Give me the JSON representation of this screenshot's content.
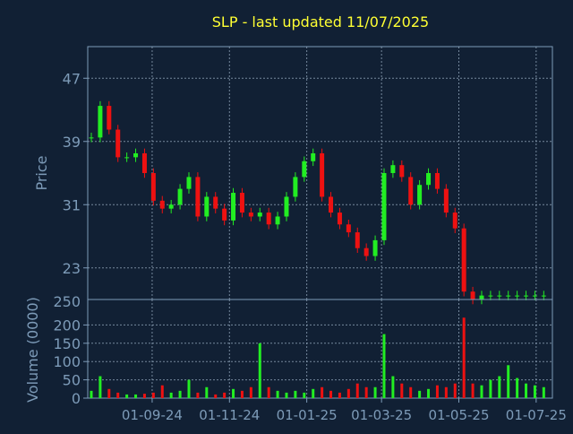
{
  "chart_data": {
    "type": "candlestick",
    "title": "SLP - last updated 11/07/2025",
    "colors": {
      "background": "#112034",
      "axis": "#7d9bb8",
      "grid": "#8fa3b8",
      "title": "#ffff33",
      "up": "#22ee22",
      "down": "#ee1111"
    },
    "price_panel": {
      "ylabel": "Price",
      "ylim": [
        19,
        51
      ],
      "yticks": [
        47,
        39,
        31,
        23
      ],
      "bottom_tick_label": "250"
    },
    "volume_panel": {
      "ylabel": "Volume (0000)",
      "ylim": [
        0,
        250
      ],
      "yticks": [
        0,
        50,
        100,
        150,
        200
      ]
    },
    "x_axis": {
      "first_date": "2024-07-15",
      "last_date": "2025-07-11",
      "tick_dates": [
        "2024-09-01",
        "2024-11-01",
        "2025-01-01",
        "2025-03-01",
        "2025-05-01",
        "2025-07-01"
      ],
      "tick_labels": [
        "01-09-24",
        "01-11-24",
        "01-01-25",
        "01-03-25",
        "01-05-25",
        "01-07-25"
      ],
      "grid": true
    },
    "price_series": {
      "name": "SLP",
      "dates": [
        "2024-07-15",
        "2024-07-22",
        "2024-07-29",
        "2024-08-05",
        "2024-08-12",
        "2024-08-19",
        "2024-08-26",
        "2024-09-02",
        "2024-09-09",
        "2024-09-16",
        "2024-09-23",
        "2024-09-30",
        "2024-10-07",
        "2024-10-14",
        "2024-10-21",
        "2024-10-28",
        "2024-11-04",
        "2024-11-11",
        "2024-11-18",
        "2024-11-25",
        "2024-12-02",
        "2024-12-09",
        "2024-12-16",
        "2024-12-23",
        "2024-12-30",
        "2025-01-06",
        "2025-01-13",
        "2025-01-20",
        "2025-01-27",
        "2025-02-03",
        "2025-02-10",
        "2025-02-17",
        "2025-02-24",
        "2025-03-03",
        "2025-03-10",
        "2025-03-17",
        "2025-03-24",
        "2025-03-31",
        "2025-04-07",
        "2025-04-14",
        "2025-04-21",
        "2025-04-28",
        "2025-05-05",
        "2025-05-12",
        "2025-05-19",
        "2025-05-26",
        "2025-06-02",
        "2025-06-09",
        "2025-06-16",
        "2025-06-23",
        "2025-06-30",
        "2025-07-07"
      ],
      "close": [
        39.5,
        43.5,
        40.5,
        37.0,
        37.0,
        37.5,
        35.0,
        31.5,
        30.5,
        31.0,
        33.0,
        34.5,
        29.5,
        32.0,
        30.5,
        29.0,
        32.5,
        30.0,
        29.5,
        30.0,
        28.5,
        29.5,
        32.0,
        34.5,
        36.5,
        37.5,
        32.0,
        30.0,
        28.5,
        27.5,
        25.5,
        24.5,
        26.5,
        35.0,
        36.0,
        34.5,
        31.0,
        33.5,
        35.0,
        33.0,
        30.0,
        28.0,
        20.0,
        19.0,
        19.5,
        19.5,
        19.5,
        19.5,
        19.5,
        19.5,
        19.5,
        19.5
      ]
    },
    "volume_series": {
      "name": "Volume (0000)",
      "values": [
        20,
        60,
        25,
        15,
        10,
        10,
        12,
        15,
        35,
        15,
        20,
        50,
        15,
        30,
        10,
        15,
        25,
        20,
        30,
        150,
        30,
        20,
        15,
        20,
        15,
        25,
        30,
        20,
        15,
        25,
        40,
        30,
        30,
        175,
        60,
        40,
        30,
        20,
        25,
        35,
        30,
        40,
        220,
        40,
        35,
        50,
        60,
        90,
        55,
        40,
        35,
        30
      ]
    }
  }
}
